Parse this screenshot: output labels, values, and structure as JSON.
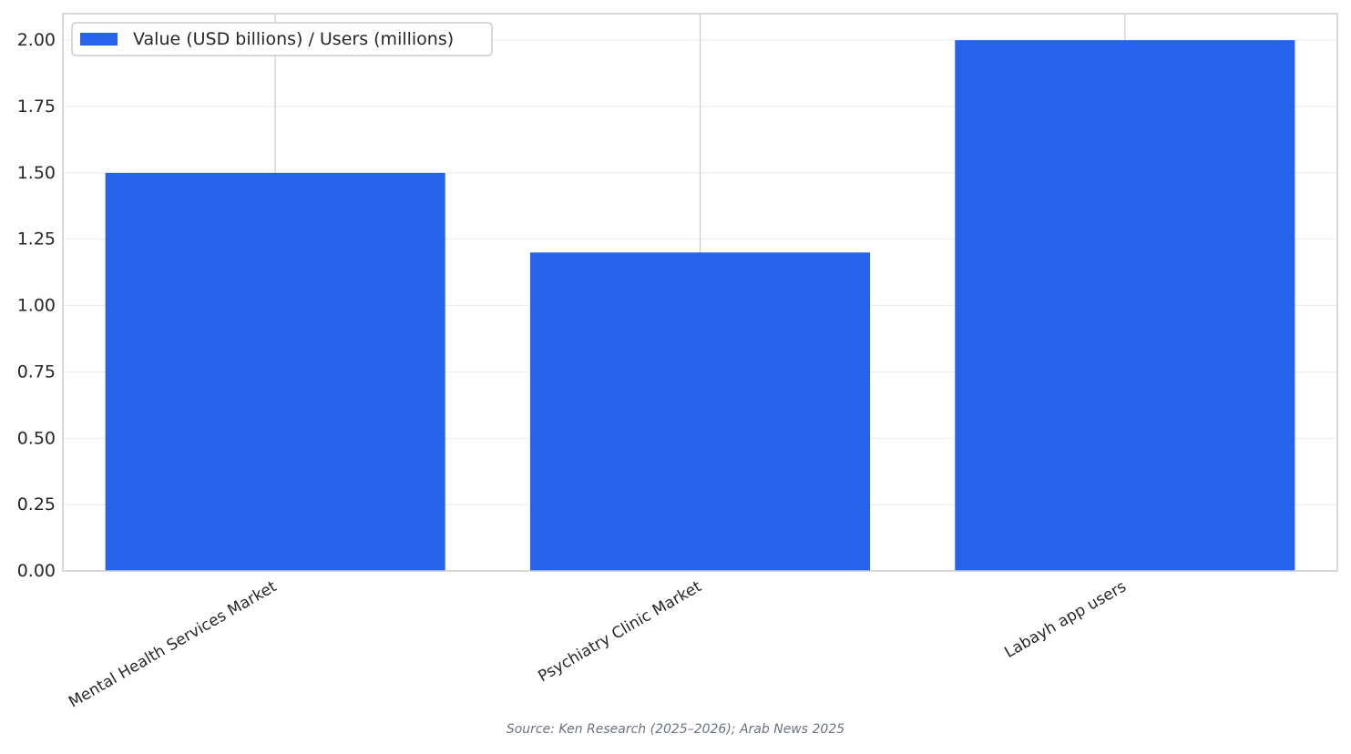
{
  "chart_data": {
    "type": "bar",
    "categories": [
      "Mental Health Services Market",
      "Psychiatry Clinic Market",
      "Labayh app users"
    ],
    "series": [
      {
        "name": "Value (USD billions) / Users (millions)",
        "values": [
          1.5,
          1.2,
          2.0
        ],
        "color": "#2563eb"
      }
    ],
    "yticks": [
      "0.00",
      "0.25",
      "0.50",
      "0.75",
      "1.00",
      "1.25",
      "1.50",
      "1.75",
      "2.00"
    ],
    "ylim": [
      0,
      2.1
    ],
    "grid": true,
    "legend_position": "top-left",
    "source": "Source: Ken Research (2025–2026); Arab News 2025"
  }
}
